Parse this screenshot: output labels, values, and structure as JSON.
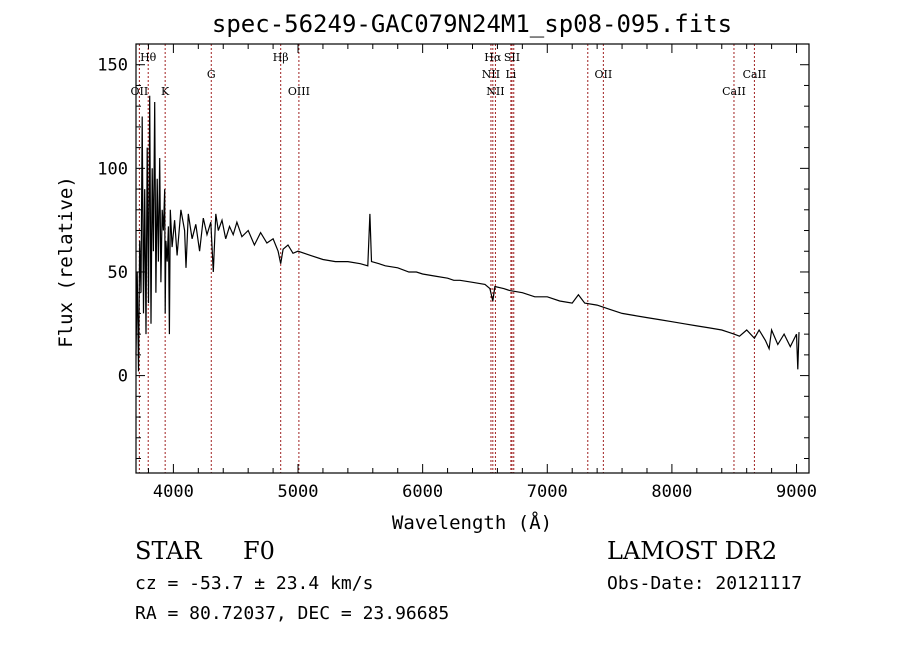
{
  "chart_data": {
    "type": "line",
    "title": "spec-56249-GAC079N24M1_sp08-095.fits",
    "xlabel": "Wavelength (Å)",
    "ylabel": "Flux (relative)",
    "xlim": [
      3700,
      9100
    ],
    "ylim": [
      -47,
      160
    ],
    "xticks": [
      4000,
      5000,
      6000,
      7000,
      8000,
      9000
    ],
    "yticks": [
      0,
      50,
      100,
      150
    ],
    "grid": false,
    "series": [
      {
        "name": "flux",
        "x": [
          3700,
          3710,
          3720,
          3730,
          3740,
          3750,
          3760,
          3770,
          3780,
          3790,
          3800,
          3810,
          3820,
          3830,
          3840,
          3850,
          3860,
          3870,
          3880,
          3890,
          3900,
          3910,
          3920,
          3930,
          3934,
          3940,
          3950,
          3960,
          3968,
          3975,
          3990,
          4010,
          4030,
          4060,
          4090,
          4101,
          4120,
          4150,
          4180,
          4210,
          4240,
          4270,
          4300,
          4320,
          4340,
          4360,
          4390,
          4420,
          4450,
          4480,
          4510,
          4550,
          4600,
          4650,
          4700,
          4750,
          4800,
          4840,
          4861,
          4880,
          4920,
          4960,
          5000,
          5100,
          5200,
          5300,
          5400,
          5500,
          5560,
          5577,
          5590,
          5650,
          5700,
          5800,
          5890,
          5950,
          6000,
          6100,
          6200,
          6250,
          6300,
          6400,
          6500,
          6540,
          6563,
          6580,
          6650,
          6700,
          6800,
          6900,
          7000,
          7100,
          7200,
          7250,
          7300,
          7400,
          7500,
          7600,
          7700,
          7800,
          7900,
          8000,
          8100,
          8200,
          8300,
          8400,
          8450,
          8498,
          8542,
          8600,
          8662,
          8700,
          8750,
          8780,
          8800,
          8850,
          8900,
          8950,
          9000,
          9010,
          9020
        ],
        "values": [
          10,
          50,
          2,
          65,
          40,
          125,
          30,
          90,
          20,
          110,
          35,
          135,
          25,
          100,
          60,
          132,
          40,
          95,
          55,
          105,
          45,
          80,
          70,
          90,
          30,
          65,
          55,
          72,
          20,
          80,
          62,
          75,
          58,
          80,
          70,
          52,
          78,
          66,
          73,
          60,
          76,
          68,
          74,
          50,
          78,
          70,
          75,
          66,
          72,
          68,
          74,
          67,
          70,
          63,
          69,
          64,
          66,
          60,
          54,
          61,
          63,
          59,
          60,
          58,
          56,
          55,
          55,
          54,
          53,
          78,
          55,
          54,
          53,
          52,
          50,
          50,
          49,
          48,
          47,
          46,
          46,
          45,
          44,
          42,
          36,
          43,
          42,
          41,
          40,
          38,
          38,
          36,
          35,
          39,
          35,
          34,
          32,
          30,
          29,
          28,
          27,
          26,
          25,
          24,
          23,
          22,
          21,
          20,
          19,
          22,
          18,
          22,
          17,
          13,
          22,
          15,
          20,
          14,
          20,
          3,
          21
        ]
      }
    ],
    "lines": [
      {
        "label": "Hθ",
        "wavelength": 3798,
        "row": "upper"
      },
      {
        "label": "OII",
        "wavelength": 3727,
        "row": "lower"
      },
      {
        "label": "K",
        "wavelength": 3934,
        "row": "lower"
      },
      {
        "label": "G",
        "wavelength": 4304,
        "row": "middle"
      },
      {
        "label": "Hβ",
        "wavelength": 4861,
        "row": "upper"
      },
      {
        "label": "OIII",
        "wavelength": 5007,
        "row": "lower"
      },
      {
        "label": "Hα",
        "wavelength": 6563,
        "row": "upper"
      },
      {
        "label": "NII",
        "wavelength": 6548,
        "row": "middle"
      },
      {
        "label": "NII",
        "wavelength": 6584,
        "row": "lower"
      },
      {
        "label": "SII",
        "wavelength": 6717,
        "row": "upper"
      },
      {
        "label": "SII",
        "wavelength": 6731,
        "row": "none"
      },
      {
        "label": "Li",
        "wavelength": 6708,
        "row": "middle"
      },
      {
        "label": "OII",
        "wavelength": 7325,
        "row": "none"
      },
      {
        "label": "OII",
        "wavelength": 7450,
        "row": "middle"
      },
      {
        "label": "CaII",
        "wavelength": 8498,
        "row": "lower"
      },
      {
        "label": "CaII",
        "wavelength": 8662,
        "row": "middle"
      }
    ]
  },
  "info": {
    "class": "STAR",
    "subclass": "F0",
    "survey": "LAMOST DR2",
    "redshift": "cz = -53.7 ± 23.4 km/s",
    "obs_date": "Obs-Date: 20121117",
    "coords": "RA =  80.72037, DEC =  23.96685"
  },
  "colors": {
    "line_marker": "#a02020",
    "spectrum": "#000000",
    "axes": "#000000"
  }
}
